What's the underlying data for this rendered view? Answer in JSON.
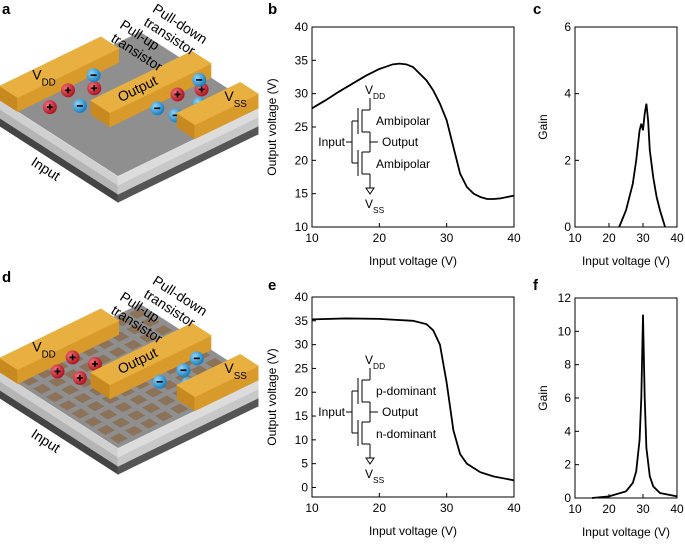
{
  "panel_labels": [
    "a",
    "b",
    "c",
    "d",
    "e",
    "f"
  ],
  "devices": [
    {
      "vdd": {
        "main": "V",
        "sub": "DD"
      },
      "pull_up": [
        "Pull-up",
        "transistor"
      ],
      "output": "Output",
      "pull_down": [
        "Pull-down",
        "transistor"
      ],
      "vss": {
        "main": "V",
        "sub": "SS"
      },
      "input": "Input"
    },
    {
      "vdd": {
        "main": "V",
        "sub": "DD"
      },
      "pull_up": [
        "Pull-up",
        "transistor"
      ],
      "output": "Output",
      "pull_down": [
        "Pull-down",
        "transistor"
      ],
      "vss": {
        "main": "V",
        "sub": "SS"
      },
      "input": "Input"
    }
  ],
  "chart_data": [
    {
      "type": "line",
      "x_label": "Input voltage (V)",
      "y_label": "Output voltage (V)",
      "color": "#000000",
      "xlim": [
        10,
        40
      ],
      "xticks": [
        10,
        20,
        30,
        40
      ],
      "ylim": [
        10,
        40
      ],
      "yticks": [
        10,
        15,
        20,
        25,
        30,
        35,
        40
      ],
      "x": [
        10,
        12,
        14,
        16,
        18,
        20,
        22,
        23,
        24,
        25,
        27,
        28,
        29,
        30,
        31,
        32,
        33,
        34,
        35,
        36,
        37,
        38,
        39,
        40
      ],
      "values": [
        27.8,
        29,
        30.3,
        31.5,
        32.7,
        33.7,
        34.4,
        34.5,
        34.4,
        34,
        32,
        30.5,
        28.5,
        26,
        22,
        18,
        16,
        15,
        14.5,
        14.2,
        14.2,
        14.3,
        14.5,
        14.7
      ],
      "inset": {
        "vdd": {
          "main": "V",
          "sub": "DD"
        },
        "top": "Ambipolar",
        "input": "Input",
        "output": "Output",
        "bottom": "Ambipolar",
        "vss": {
          "main": "V",
          "sub": "SS"
        }
      }
    },
    {
      "type": "line",
      "x_label": "Input voltage (V)",
      "y_label": "Gain",
      "color": "#000000",
      "xlim": [
        10,
        40
      ],
      "xticks": [
        10,
        20,
        30,
        40
      ],
      "ylim": [
        0,
        6
      ],
      "yticks": [
        0,
        2,
        4,
        6
      ],
      "x": [
        23,
        25,
        27,
        28,
        29,
        29.5,
        30,
        30.5,
        31,
        31.5,
        32,
        33,
        34,
        35,
        36.5
      ],
      "values": [
        0,
        0.5,
        1.3,
        2.0,
        2.9,
        3.1,
        2.9,
        3.4,
        3.7,
        3.2,
        2.3,
        1.5,
        0.9,
        0.5,
        0
      ]
    },
    {
      "type": "line",
      "x_label": "Input voltage (V)",
      "y_label": "Output voltage (V)",
      "color": "#000000",
      "xlim": [
        10,
        40
      ],
      "xticks": [
        10,
        20,
        30,
        40
      ],
      "ylim": [
        -2,
        40
      ],
      "yticks": [
        0,
        5,
        10,
        15,
        20,
        25,
        30,
        35,
        40
      ],
      "x": [
        10,
        15,
        20,
        25,
        27,
        28,
        29,
        30,
        31,
        32,
        33,
        35,
        37,
        40
      ],
      "values": [
        35.3,
        35.5,
        35.4,
        35,
        34.3,
        33,
        30,
        22,
        12,
        7,
        5,
        3.2,
        2.3,
        1.5
      ],
      "inset": {
        "vdd": {
          "main": "V",
          "sub": "DD"
        },
        "top": "p-dominant",
        "input": "Input",
        "output": "Output",
        "bottom": "n-dominant",
        "vss": {
          "main": "V",
          "sub": "SS"
        }
      }
    },
    {
      "type": "line",
      "x_label": "Input voltage (V)",
      "y_label": "Gain",
      "color": "#000000",
      "xlim": [
        10,
        40
      ],
      "xticks": [
        10,
        20,
        30,
        40
      ],
      "ylim": [
        0,
        12
      ],
      "yticks": [
        0,
        2,
        4,
        6,
        8,
        10,
        12
      ],
      "x": [
        15,
        20,
        25,
        27,
        28,
        29,
        29.5,
        30,
        30.5,
        31,
        32,
        33,
        35,
        40
      ],
      "values": [
        0,
        0.1,
        0.4,
        0.9,
        1.6,
        3.5,
        6,
        11,
        6,
        3,
        1.3,
        0.7,
        0.3,
        0.1
      ]
    }
  ]
}
